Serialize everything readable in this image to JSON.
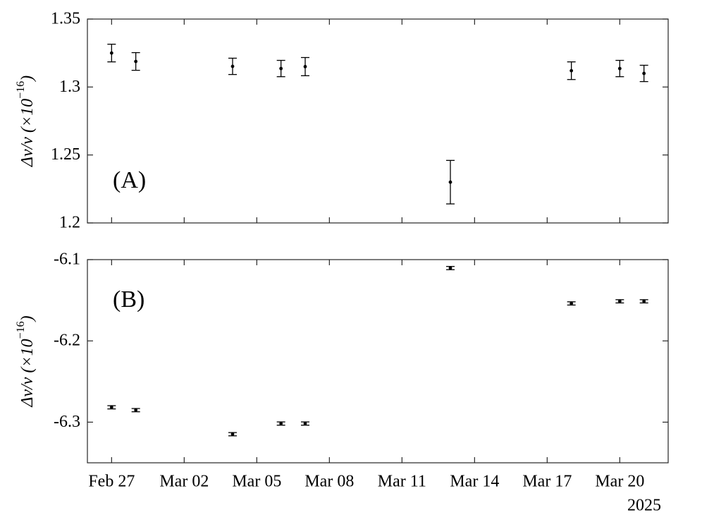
{
  "chart_data": [
    {
      "type": "errorbar",
      "annotation": "(A)",
      "ylabel": "Δν/ν (×10",
      "ylabel_exponent": "−16",
      "ylabel_close": ")",
      "x": [
        "2025-02-27",
        "2025-02-28",
        "2025-03-04",
        "2025-03-06",
        "2025-03-07",
        "2025-03-13",
        "2025-03-18",
        "2025-03-20",
        "2025-03-21"
      ],
      "values": [
        1.325,
        1.3188,
        1.3152,
        1.3136,
        1.315,
        1.23,
        1.312,
        1.3136,
        1.31
      ],
      "errors": [
        0.0065,
        0.0065,
        0.006,
        0.006,
        0.0067,
        0.016,
        0.0065,
        0.006,
        0.006
      ],
      "color": "#000000",
      "xlim": [
        "2025-02-26",
        "2025-03-22"
      ],
      "xticks": [
        "2025-02-27",
        "2025-03-02",
        "2025-03-05",
        "2025-03-08",
        "2025-03-11",
        "2025-03-14",
        "2025-03-17",
        "2025-03-20"
      ],
      "ylim": [
        1.2,
        1.35
      ],
      "yticks": [
        1.2,
        1.25,
        1.3,
        1.35
      ]
    },
    {
      "type": "errorbar",
      "annotation": "(B)",
      "ylabel": "Δν/ν (×10",
      "ylabel_exponent": "−16",
      "ylabel_close": ")",
      "x": [
        "2025-02-27",
        "2025-02-28",
        "2025-03-04",
        "2025-03-06",
        "2025-03-07",
        "2025-03-13",
        "2025-03-18",
        "2025-03-20",
        "2025-03-21"
      ],
      "values": [
        -6.2817,
        -6.2852,
        -6.3148,
        -6.3017,
        -6.3017,
        -6.1104,
        -6.1539,
        -6.1513,
        -6.1513
      ],
      "errors": [
        0.002,
        0.002,
        0.002,
        0.002,
        0.002,
        0.002,
        0.002,
        0.002,
        0.002
      ],
      "color": "#000000",
      "xlim": [
        "2025-02-26",
        "2025-03-22"
      ],
      "xticks": [
        {
          "value": "2025-02-27",
          "label": "Feb 27"
        },
        {
          "value": "2025-03-02",
          "label": "Mar 02"
        },
        {
          "value": "2025-03-05",
          "label": "Mar 05"
        },
        {
          "value": "2025-03-08",
          "label": "Mar 08"
        },
        {
          "value": "2025-03-11",
          "label": "Mar 11"
        },
        {
          "value": "2025-03-14",
          "label": "Mar 14"
        },
        {
          "value": "2025-03-17",
          "label": "Mar 17"
        },
        {
          "value": "2025-03-20",
          "label": "Mar 20"
        }
      ],
      "x_year_label": "2025",
      "ylim": [
        -6.35,
        -6.1
      ],
      "yticks": [
        -6.3,
        -6.2,
        -6.1
      ]
    }
  ]
}
